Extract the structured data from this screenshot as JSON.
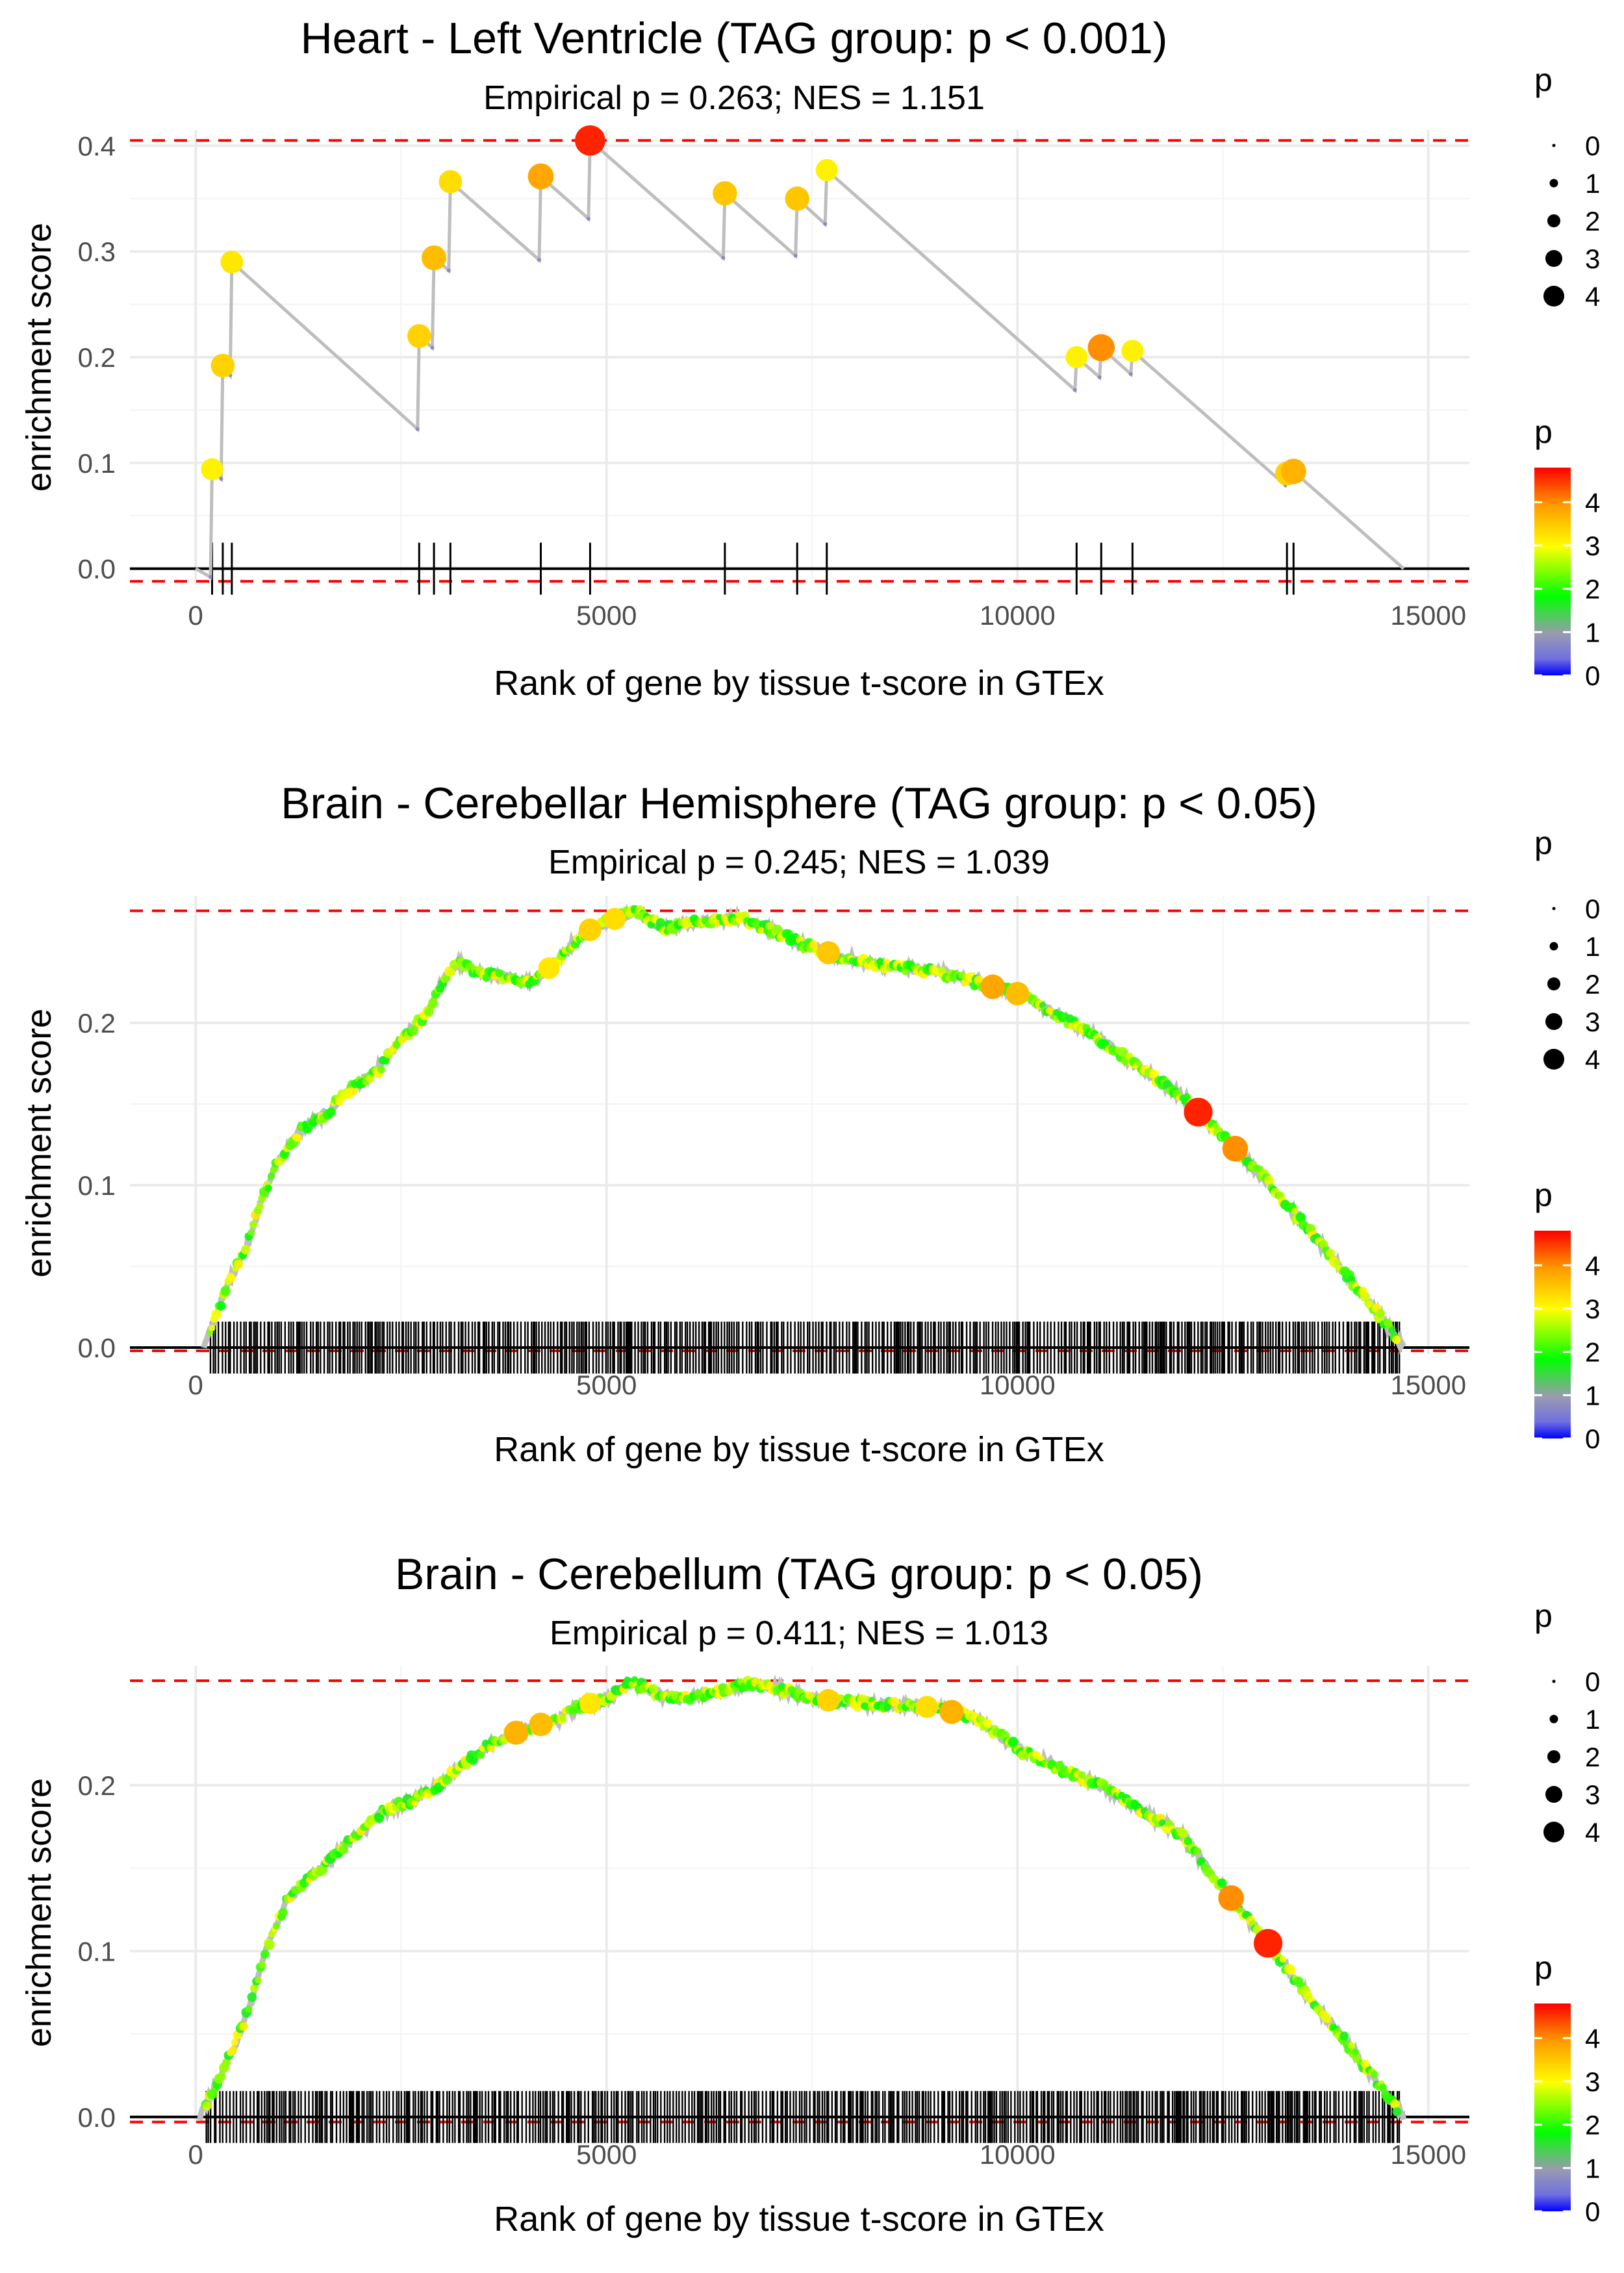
{
  "chart_data": [
    {
      "type": "line",
      "title": "Heart - Left Ventricle (TAG group: p < 0.001)",
      "subtitle": "Empirical p = 0.263; NES = 1.151",
      "xlabel": "Rank of gene by tissue t-score in GTEx",
      "ylabel": "enrichment score",
      "xlim": [
        -800,
        15500
      ],
      "ylim": [
        -0.015,
        0.415
      ],
      "xticks": [
        0,
        5000,
        10000,
        15000
      ],
      "xtick_labels": [
        "0",
        "5000",
        "10000",
        "15000"
      ],
      "yticks": [
        0.0,
        0.1,
        0.2,
        0.3,
        0.4
      ],
      "ytick_labels": [
        "0.0",
        "0.1",
        "0.2",
        "0.3",
        "0.4"
      ],
      "max_es": 0.405,
      "min_es": -0.012,
      "curve": [
        [
          0,
          0
        ],
        [
          180,
          -0.008
        ],
        [
          200,
          0.094
        ],
        [
          310,
          0.085
        ],
        [
          330,
          0.192
        ],
        [
          420,
          0.183
        ],
        [
          440,
          0.29
        ],
        [
          2700,
          0.132
        ],
        [
          2720,
          0.22
        ],
        [
          2880,
          0.209
        ],
        [
          2900,
          0.294
        ],
        [
          3080,
          0.282
        ],
        [
          3100,
          0.366
        ],
        [
          4180,
          0.292
        ],
        [
          4200,
          0.371
        ],
        [
          4780,
          0.331
        ],
        [
          4800,
          0.405
        ],
        [
          6420,
          0.294
        ],
        [
          6440,
          0.355
        ],
        [
          7300,
          0.296
        ],
        [
          7320,
          0.35
        ],
        [
          7660,
          0.326
        ],
        [
          7680,
          0.377
        ],
        [
          10700,
          0.169
        ],
        [
          10720,
          0.2
        ],
        [
          11000,
          0.181
        ],
        [
          11020,
          0.209
        ],
        [
          11380,
          0.184
        ],
        [
          11400,
          0.206
        ],
        [
          13260,
          0.079
        ],
        [
          13280,
          0.09
        ],
        [
          13340,
          0.086
        ],
        [
          13360,
          0.092
        ],
        [
          14700,
          0
        ]
      ],
      "hits": [
        {
          "rank": 200,
          "es": 0.094,
          "p": 3.1
        },
        {
          "rank": 330,
          "es": 0.192,
          "p": 3.4
        },
        {
          "rank": 440,
          "es": 0.29,
          "p": 3.2
        },
        {
          "rank": 2720,
          "es": 0.22,
          "p": 3.4
        },
        {
          "rank": 2900,
          "es": 0.294,
          "p": 3.6
        },
        {
          "rank": 3100,
          "es": 0.366,
          "p": 3.3
        },
        {
          "rank": 4200,
          "es": 0.371,
          "p": 3.8
        },
        {
          "rank": 4800,
          "es": 0.405,
          "p": 4.6
        },
        {
          "rank": 6440,
          "es": 0.355,
          "p": 3.5
        },
        {
          "rank": 7320,
          "es": 0.35,
          "p": 3.5
        },
        {
          "rank": 7680,
          "es": 0.377,
          "p": 3.1
        },
        {
          "rank": 10720,
          "es": 0.2,
          "p": 3.1
        },
        {
          "rank": 11020,
          "es": 0.209,
          "p": 4.0
        },
        {
          "rank": 11400,
          "es": 0.206,
          "p": 3.1
        },
        {
          "rank": 13280,
          "es": 0.09,
          "p": 3.4
        },
        {
          "rank": 13360,
          "es": 0.092,
          "p": 3.7
        }
      ]
    },
    {
      "type": "line",
      "title": "Brain - Cerebellar Hemisphere (TAG group: p < 0.05)",
      "subtitle": "Empirical p = 0.245; NES = 1.039",
      "xlabel": "Rank of gene by tissue t-score in GTEx",
      "ylabel": "enrichment score",
      "xlim": [
        -800,
        15500
      ],
      "ylim": [
        -0.004,
        0.278
      ],
      "xticks": [
        0,
        5000,
        10000,
        15000
      ],
      "xtick_labels": [
        "0",
        "5000",
        "10000",
        "15000"
      ],
      "yticks": [
        0.0,
        0.1,
        0.2
      ],
      "ytick_labels": [
        "0.0",
        "0.1",
        "0.2"
      ],
      "max_es": 0.269,
      "min_es": -0.002,
      "curve": [
        [
          100,
          0
        ],
        [
          250,
          0.02
        ],
        [
          400,
          0.04
        ],
        [
          600,
          0.06
        ],
        [
          800,
          0.09
        ],
        [
          1000,
          0.115
        ],
        [
          1300,
          0.135
        ],
        [
          1600,
          0.145
        ],
        [
          1900,
          0.16
        ],
        [
          2200,
          0.17
        ],
        [
          2500,
          0.19
        ],
        [
          2800,
          0.205
        ],
        [
          3000,
          0.225
        ],
        [
          3200,
          0.237
        ],
        [
          3500,
          0.23
        ],
        [
          3800,
          0.228
        ],
        [
          4100,
          0.225
        ],
        [
          4400,
          0.238
        ],
        [
          4700,
          0.255
        ],
        [
          5000,
          0.262
        ],
        [
          5350,
          0.269
        ],
        [
          5700,
          0.258
        ],
        [
          6100,
          0.262
        ],
        [
          6600,
          0.265
        ],
        [
          7000,
          0.257
        ],
        [
          7400,
          0.248
        ],
        [
          7900,
          0.24
        ],
        [
          8400,
          0.235
        ],
        [
          9000,
          0.232
        ],
        [
          9500,
          0.225
        ],
        [
          10000,
          0.218
        ],
        [
          10500,
          0.205
        ],
        [
          11000,
          0.19
        ],
        [
          11500,
          0.172
        ],
        [
          12000,
          0.155
        ],
        [
          12500,
          0.13
        ],
        [
          13000,
          0.105
        ],
        [
          13500,
          0.075
        ],
        [
          14000,
          0.045
        ],
        [
          14400,
          0.02
        ],
        [
          14700,
          0
        ]
      ],
      "highlights": [
        {
          "rank": 12200,
          "p": 4.6
        },
        {
          "rank": 12650,
          "p": 4.0
        },
        {
          "rank": 9700,
          "p": 3.8
        },
        {
          "rank": 10000,
          "p": 3.6
        },
        {
          "rank": 7700,
          "p": 3.5
        },
        {
          "rank": 4800,
          "p": 3.4
        },
        {
          "rank": 5100,
          "p": 3.3
        },
        {
          "rank": 4300,
          "p": 3.2
        }
      ]
    },
    {
      "type": "line",
      "title": "Brain - Cerebellum (TAG group: p < 0.05)",
      "subtitle": "Empirical p = 0.411; NES = 1.013",
      "xlabel": "Rank of gene by tissue t-score in GTEx",
      "ylabel": "enrichment score",
      "xlim": [
        -800,
        15500
      ],
      "ylim": [
        -0.004,
        0.272
      ],
      "xticks": [
        0,
        5000,
        10000,
        15000
      ],
      "xtick_labels": [
        "0",
        "5000",
        "10000",
        "15000"
      ],
      "yticks": [
        0.0,
        0.1,
        0.2
      ],
      "ytick_labels": [
        "0.0",
        "0.1",
        "0.2"
      ],
      "max_es": 0.263,
      "min_es": -0.003,
      "curve": [
        [
          50,
          0
        ],
        [
          250,
          0.02
        ],
        [
          450,
          0.04
        ],
        [
          650,
          0.065
        ],
        [
          850,
          0.1
        ],
        [
          1100,
          0.13
        ],
        [
          1400,
          0.145
        ],
        [
          1700,
          0.158
        ],
        [
          2000,
          0.172
        ],
        [
          2300,
          0.185
        ],
        [
          2600,
          0.19
        ],
        [
          2900,
          0.198
        ],
        [
          3200,
          0.21
        ],
        [
          3500,
          0.222
        ],
        [
          3800,
          0.23
        ],
        [
          4100,
          0.235
        ],
        [
          4400,
          0.24
        ],
        [
          4700,
          0.248
        ],
        [
          5000,
          0.252
        ],
        [
          5300,
          0.263
        ],
        [
          5600,
          0.255
        ],
        [
          5900,
          0.252
        ],
        [
          6200,
          0.255
        ],
        [
          6500,
          0.258
        ],
        [
          6800,
          0.262
        ],
        [
          7100,
          0.258
        ],
        [
          7500,
          0.252
        ],
        [
          8000,
          0.25
        ],
        [
          8500,
          0.248
        ],
        [
          9000,
          0.247
        ],
        [
          9500,
          0.24
        ],
        [
          10000,
          0.222
        ],
        [
          10500,
          0.21
        ],
        [
          11000,
          0.2
        ],
        [
          11500,
          0.185
        ],
        [
          12000,
          0.17
        ],
        [
          12500,
          0.138
        ],
        [
          13000,
          0.108
        ],
        [
          13500,
          0.075
        ],
        [
          14000,
          0.045
        ],
        [
          14400,
          0.02
        ],
        [
          14700,
          0
        ]
      ],
      "highlights": [
        {
          "rank": 13050,
          "p": 4.6
        },
        {
          "rank": 12600,
          "p": 4.0
        },
        {
          "rank": 4200,
          "p": 3.6
        },
        {
          "rank": 3900,
          "p": 3.7
        },
        {
          "rank": 9200,
          "p": 3.7
        },
        {
          "rank": 7700,
          "p": 3.4
        },
        {
          "rank": 8900,
          "p": 3.3
        },
        {
          "rank": 4800,
          "p": 3.2
        }
      ]
    }
  ],
  "legend": {
    "size": {
      "title": "p",
      "labels": [
        "0",
        "1",
        "2",
        "3",
        "4"
      ]
    },
    "color": {
      "title": "p",
      "labels": [
        "0",
        "1",
        "2",
        "3",
        "4"
      ],
      "max": 4.8
    },
    "gradient_colors": [
      "#0000ff",
      "#8080d0",
      "#9090b0",
      "#00ff00",
      "#ffff00",
      "#ff8000",
      "#ff0000"
    ]
  },
  "colors": {
    "threshold_line": "#ff0000",
    "path_line": "#bebebe",
    "gridline": "#ebebeb"
  }
}
